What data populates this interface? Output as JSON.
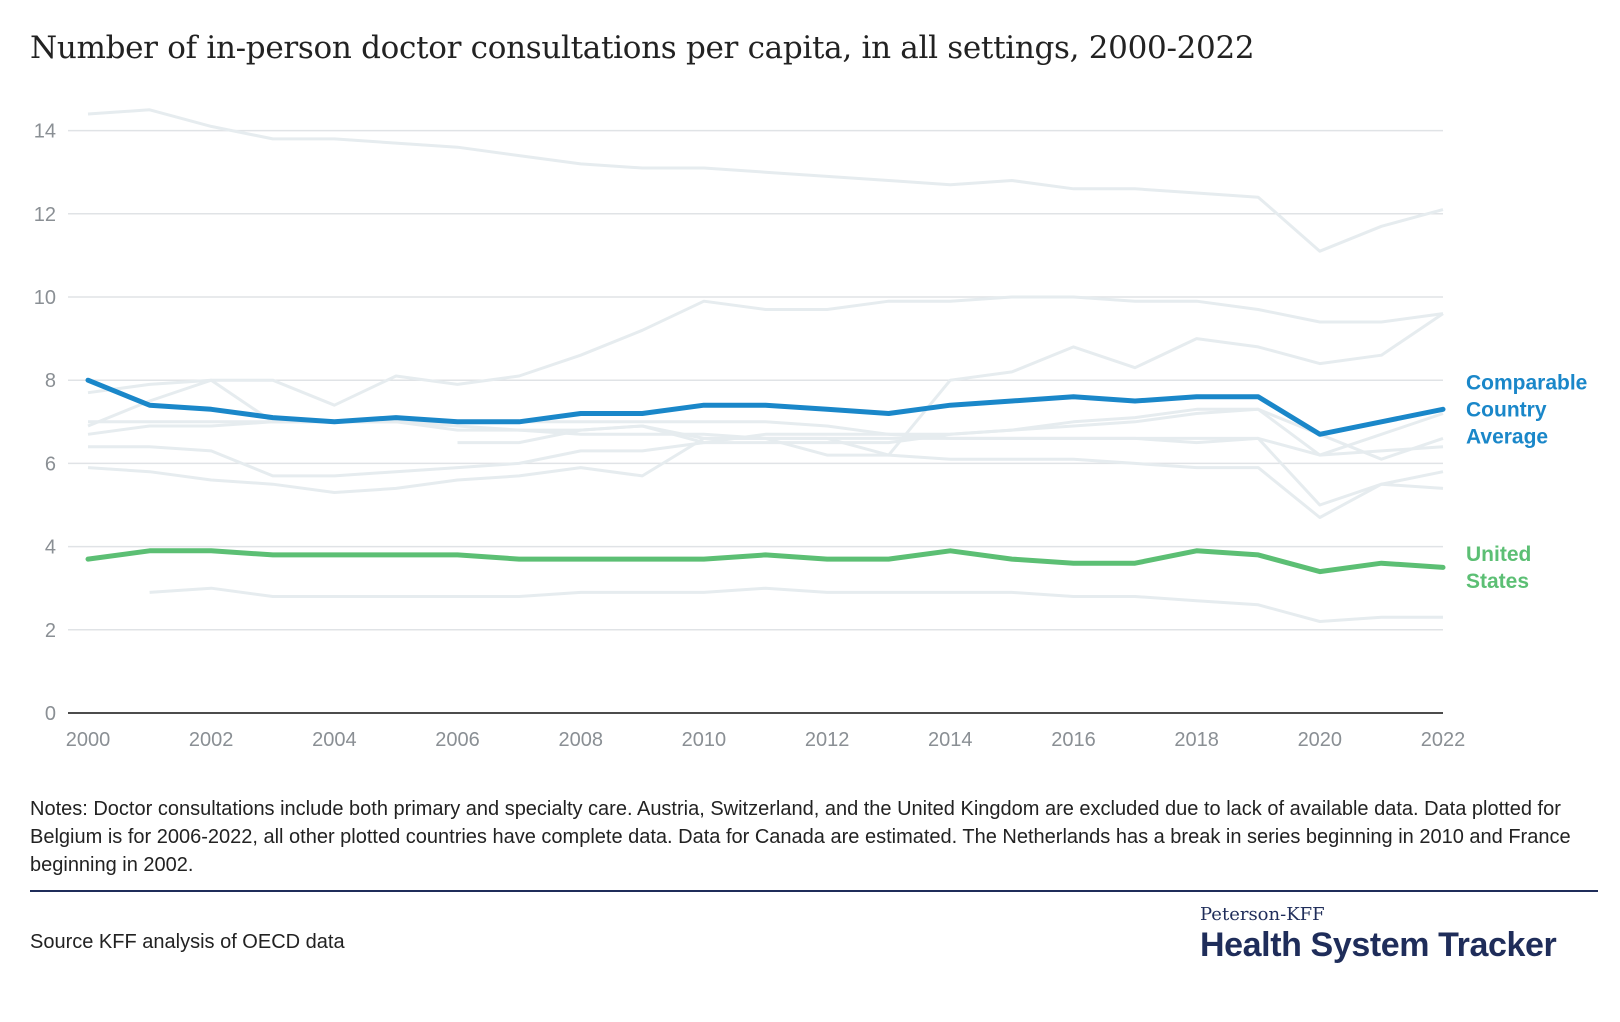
{
  "title": "Number of in-person doctor consultations per capita, in all settings, 2000-2022",
  "notes": "Notes: Doctor consultations include both primary and specialty care. Austria, Switzerland, and the United Kingdom are excluded due to lack of available data. Data plotted for Belgium is for 2006-2022, all other plotted countries have complete data. Data for Canada are estimated. The Netherlands has a break in series beginning in 2010 and France beginning in 2002.",
  "source": "Source KFF analysis of OECD data",
  "brand": {
    "small": "Peterson-KFF",
    "big": "Health System Tracker"
  },
  "colors": {
    "highlight_avg": "#1a87c9",
    "highlight_us": "#5cbf74",
    "background_lines": "#e6ecef",
    "grid": "#e0e3e6",
    "axis": "#111111",
    "tick_text": "#8a8f94",
    "brand": "#1f2d5a"
  },
  "chart_data": {
    "type": "line",
    "title": "Number of in-person doctor consultations per capita, in all settings, 2000-2022",
    "xlabel": "",
    "ylabel": "",
    "xlim": [
      2000,
      2022
    ],
    "ylim": [
      0,
      14.5
    ],
    "x_ticks": [
      2000,
      2002,
      2004,
      2006,
      2008,
      2010,
      2012,
      2014,
      2016,
      2018,
      2020,
      2022
    ],
    "y_ticks": [
      0,
      2,
      4,
      6,
      8,
      10,
      12,
      14
    ],
    "grid": true,
    "x": [
      2000,
      2001,
      2002,
      2003,
      2004,
      2005,
      2006,
      2007,
      2008,
      2009,
      2010,
      2011,
      2012,
      2013,
      2014,
      2015,
      2016,
      2017,
      2018,
      2019,
      2020,
      2021,
      2022
    ],
    "highlighted_series": [
      {
        "name": "Comparable Country Average",
        "label_lines": [
          "Comparable",
          "Country",
          "Average"
        ],
        "color": "#1a87c9",
        "values": [
          8.0,
          7.4,
          7.3,
          7.1,
          7.0,
          7.1,
          7.0,
          7.0,
          7.2,
          7.2,
          7.4,
          7.4,
          7.3,
          7.2,
          7.4,
          7.5,
          7.6,
          7.5,
          7.6,
          7.6,
          6.7,
          7.0,
          7.3
        ]
      },
      {
        "name": "United States",
        "label_lines": [
          "United",
          "States"
        ],
        "color": "#5cbf74",
        "values": [
          3.7,
          3.9,
          3.9,
          3.8,
          3.8,
          3.8,
          3.8,
          3.7,
          3.7,
          3.7,
          3.7,
          3.8,
          3.7,
          3.7,
          3.9,
          3.7,
          3.6,
          3.6,
          3.9,
          3.8,
          3.4,
          3.6,
          3.5
        ]
      }
    ],
    "background_series": [
      {
        "values": [
          14.4,
          14.5,
          14.1,
          13.8,
          13.8,
          13.7,
          13.6,
          13.4,
          13.2,
          13.1,
          13.1,
          13.0,
          12.9,
          12.8,
          12.7,
          12.8,
          12.6,
          12.6,
          12.5,
          12.4,
          11.1,
          11.7,
          12.1
        ]
      },
      {
        "values": [
          6.9,
          7.5,
          8.0,
          8.0,
          7.4,
          8.1,
          7.9,
          8.1,
          8.6,
          9.2,
          9.9,
          9.7,
          9.7,
          9.9,
          9.9,
          10.0,
          10.0,
          9.9,
          9.9,
          9.7,
          9.4,
          9.4,
          9.6
        ]
      },
      {
        "values": [
          7.7,
          7.9,
          8.0,
          7.0,
          7.0,
          7.0,
          6.8,
          6.8,
          6.8,
          6.9,
          6.6,
          6.6,
          6.6,
          6.2,
          8.0,
          8.2,
          8.8,
          8.3,
          9.0,
          8.8,
          8.4,
          8.6,
          9.6
        ]
      },
      {
        "values": [
          6.7,
          6.9,
          6.9,
          7.0,
          7.0,
          7.0,
          6.9,
          6.8,
          6.7,
          6.7,
          6.7,
          6.6,
          6.6,
          6.6,
          6.6,
          6.6,
          6.6,
          6.6,
          6.5,
          6.6,
          5.0,
          5.5,
          5.8
        ]
      },
      {
        "values": [
          null,
          null,
          null,
          null,
          null,
          null,
          6.5,
          6.5,
          6.8,
          6.9,
          6.5,
          6.5,
          6.5,
          6.5,
          6.7,
          6.8,
          6.9,
          7.0,
          7.2,
          7.3,
          6.2,
          6.7,
          7.2
        ]
      },
      {
        "values": [
          6.4,
          6.4,
          6.3,
          5.7,
          5.7,
          5.8,
          5.9,
          6.0,
          6.3,
          6.3,
          6.5,
          6.7,
          6.7,
          6.7,
          6.7,
          6.8,
          7.0,
          7.1,
          7.3,
          7.3,
          6.7,
          6.1,
          6.6
        ]
      },
      {
        "values": [
          5.9,
          5.8,
          5.6,
          5.5,
          5.3,
          5.4,
          5.6,
          5.7,
          5.9,
          5.7,
          6.6,
          6.6,
          6.2,
          6.2,
          6.1,
          6.1,
          6.1,
          6.0,
          5.9,
          5.9,
          4.7,
          5.5,
          5.4
        ]
      },
      {
        "values": [
          7.0,
          7.0,
          7.0,
          7.0,
          7.0,
          7.0,
          7.0,
          7.0,
          7.0,
          7.0,
          7.0,
          7.0,
          6.9,
          6.7,
          6.6,
          6.6,
          6.6,
          6.6,
          6.6,
          6.6,
          6.2,
          6.3,
          6.4
        ]
      },
      {
        "values": [
          null,
          2.9,
          3.0,
          2.8,
          2.8,
          2.8,
          2.8,
          2.8,
          2.9,
          2.9,
          2.9,
          3.0,
          2.9,
          2.9,
          2.9,
          2.9,
          2.8,
          2.8,
          2.7,
          2.6,
          2.2,
          2.3,
          2.3
        ]
      }
    ]
  }
}
